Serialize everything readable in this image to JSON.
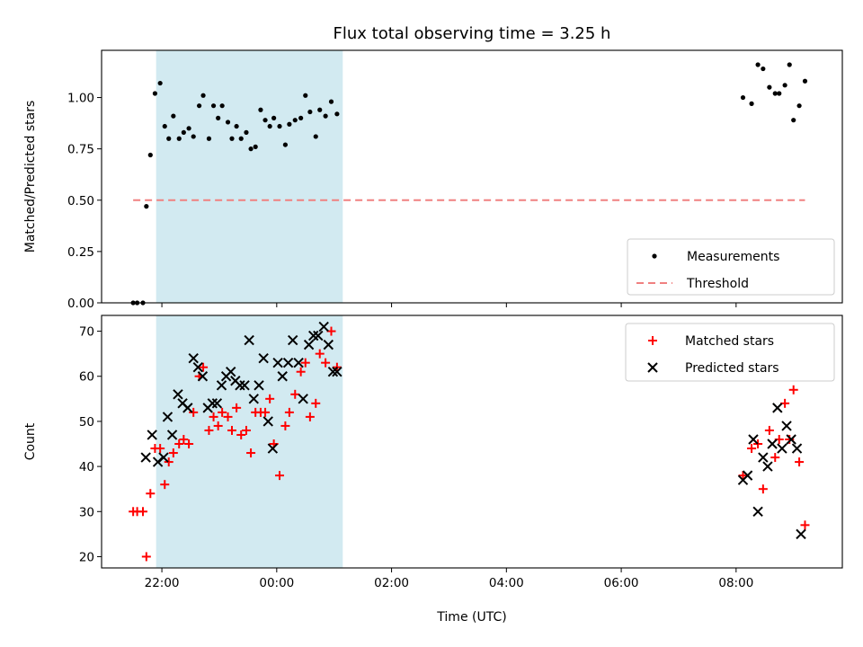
{
  "chart_data": {
    "title": "Flux total observing time = 3.25 h",
    "xlabel": "Time (UTC)",
    "x_ticks": [
      "22:00",
      "00:00",
      "02:00",
      "04:00",
      "06:00",
      "08:00"
    ],
    "x_tick_hours": [
      22,
      24,
      26,
      28,
      30,
      32
    ],
    "x_range_hours": [
      20.95,
      33.85
    ],
    "shaded_interval_hours": [
      21.9,
      25.15
    ],
    "shade_color": "#add8e6",
    "panels": [
      {
        "type": "scatter",
        "ylabel": "Matched/Predicted stars",
        "ylim": [
          0.0,
          1.23
        ],
        "y_ticks": [
          "0.00",
          "0.25",
          "0.50",
          "0.75",
          "1.00"
        ],
        "y_tick_values": [
          0.0,
          0.25,
          0.5,
          0.75,
          1.0
        ],
        "legend": "lower right",
        "series": [
          {
            "name": "Measurements",
            "marker": "dot",
            "color": "#000000",
            "x": [
              21.5,
              21.57,
              21.67,
              21.73,
              21.8,
              21.88,
              21.97,
              22.05,
              22.12,
              22.2,
              22.3,
              22.38,
              22.47,
              22.55,
              22.65,
              22.72,
              22.82,
              22.9,
              22.98,
              23.05,
              23.15,
              23.22,
              23.3,
              23.38,
              23.47,
              23.55,
              23.63,
              23.72,
              23.8,
              23.88,
              23.95,
              24.05,
              24.15,
              24.22,
              24.32,
              24.42,
              24.5,
              24.58,
              24.68,
              24.75,
              24.85,
              24.95,
              25.05,
              32.12,
              32.27,
              32.38,
              32.47,
              32.58,
              32.68,
              32.75,
              32.85,
              32.93,
              33.0,
              33.1,
              33.2
            ],
            "y": [
              0.0,
              0.0,
              0.0,
              0.47,
              0.72,
              1.02,
              1.07,
              0.86,
              0.8,
              0.91,
              0.8,
              0.83,
              0.85,
              0.81,
              0.96,
              1.01,
              0.8,
              0.96,
              0.9,
              0.96,
              0.88,
              0.8,
              0.86,
              0.8,
              0.83,
              0.75,
              0.76,
              0.94,
              0.89,
              0.86,
              0.9,
              0.86,
              0.77,
              0.87,
              0.89,
              0.9,
              1.01,
              0.93,
              0.81,
              0.94,
              0.91,
              0.98,
              0.92,
              1.0,
              0.97,
              1.16,
              1.14,
              1.05,
              1.02,
              1.02,
              1.06,
              1.16,
              0.89,
              0.96,
              1.08
            ]
          },
          {
            "name": "Threshold",
            "type": "line",
            "style": "dashed",
            "color": "#f08080",
            "x": [
              21.5,
              33.2
            ],
            "y": [
              0.5,
              0.5
            ]
          }
        ]
      },
      {
        "type": "scatter",
        "ylabel": "Count",
        "ylim": [
          17.5,
          73.5
        ],
        "y_ticks": [
          "20",
          "30",
          "40",
          "50",
          "60",
          "70"
        ],
        "y_tick_values": [
          20,
          30,
          40,
          50,
          60,
          70
        ],
        "legend": "upper right",
        "series": [
          {
            "name": "Matched stars",
            "marker": "plus",
            "color": "#ff0000",
            "x": [
              21.5,
              21.57,
              21.67,
              21.73,
              21.8,
              21.88,
              21.97,
              22.05,
              22.12,
              22.2,
              22.3,
              22.38,
              22.47,
              22.55,
              22.65,
              22.72,
              22.82,
              22.9,
              22.98,
              23.05,
              23.15,
              23.22,
              23.3,
              23.38,
              23.47,
              23.55,
              23.63,
              23.72,
              23.8,
              23.88,
              23.95,
              24.05,
              24.15,
              24.22,
              24.32,
              24.42,
              24.5,
              24.58,
              24.68,
              24.75,
              24.85,
              24.95,
              25.05,
              32.12,
              32.27,
              32.38,
              32.47,
              32.58,
              32.68,
              32.75,
              32.85,
              32.93,
              33.0,
              33.1,
              33.2
            ],
            "y": [
              30,
              30,
              30,
              20,
              34,
              44,
              44,
              36,
              41,
              43,
              45,
              46,
              45,
              52,
              60,
              62,
              48,
              51,
              49,
              52,
              51,
              48,
              53,
              47,
              48,
              43,
              52,
              52,
              52,
              55,
              45,
              38,
              49,
              52,
              56,
              61,
              63,
              51,
              54,
              65,
              63,
              70,
              62,
              38,
              44,
              45,
              35,
              48,
              42,
              46,
              54,
              46,
              57,
              41,
              27
            ]
          },
          {
            "name": "Predicted stars",
            "marker": "x",
            "color": "#000000",
            "x": [
              21.72,
              21.83,
              21.93,
              22.03,
              22.1,
              22.18,
              22.28,
              22.36,
              22.45,
              22.55,
              22.63,
              22.71,
              22.8,
              22.88,
              22.96,
              23.04,
              23.12,
              23.2,
              23.28,
              23.36,
              23.44,
              23.52,
              23.6,
              23.69,
              23.77,
              23.85,
              23.93,
              24.02,
              24.1,
              24.2,
              24.28,
              24.38,
              24.46,
              24.56,
              24.64,
              24.72,
              24.82,
              24.9,
              24.98,
              25.05,
              32.12,
              32.2,
              32.3,
              32.38,
              32.47,
              32.55,
              32.63,
              32.72,
              32.8,
              32.88,
              32.96,
              33.06,
              33.13
            ],
            "y": [
              42,
              47,
              41,
              42,
              51,
              47,
              56,
              54,
              53,
              64,
              62,
              60,
              53,
              54,
              54,
              58,
              60,
              61,
              59,
              58,
              58,
              68,
              55,
              58,
              64,
              50,
              44,
              63,
              60,
              63,
              68,
              63,
              55,
              67,
              69,
              69,
              71,
              67,
              61,
              61,
              37,
              38,
              46,
              30,
              42,
              40,
              45,
              53,
              44,
              49,
              46,
              44,
              25
            ]
          }
        ]
      }
    ]
  }
}
